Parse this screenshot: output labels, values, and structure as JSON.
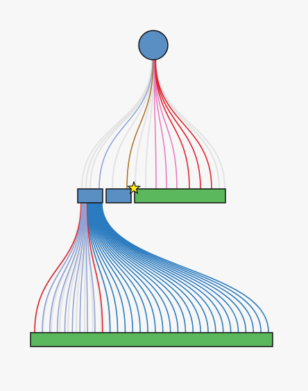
{
  "diagram": {
    "background": "#f7f7f7",
    "colors": {
      "node_blue": "#5a8fc4",
      "node_green": "#5cb85c",
      "outline": "#111111",
      "link_gray": "#e4e4e4",
      "link_red": "#e0212b",
      "link_pink": "#e87bbf",
      "link_periwinkle": "#8fa2d4",
      "link_brown": "#a8782a",
      "link_blue": "#2b7bbf",
      "star_fill": "#ffe81a"
    },
    "nodes": [
      {
        "id": "root",
        "shape": "circle",
        "color": "node_blue"
      },
      {
        "id": "mid-left",
        "shape": "rect",
        "color": "node_blue"
      },
      {
        "id": "mid-center",
        "shape": "rect",
        "color": "node_blue"
      },
      {
        "id": "mid-right",
        "shape": "rect",
        "color": "node_green"
      },
      {
        "id": "bottom",
        "shape": "rect",
        "color": "node_green"
      }
    ],
    "upper_links": [
      "gray",
      "gray",
      "gray",
      "periwinkle",
      "gray",
      "brown",
      "gray",
      "gray",
      "pink",
      "pink",
      "pink",
      "red",
      "red",
      "red",
      "gray",
      "gray"
    ],
    "lower_links": [
      "red",
      "periwinkle",
      "periwinkle",
      "periwinkle",
      "periwinkle",
      "periwinkle",
      "periwinkle",
      "periwinkle",
      "periwinkle",
      "red",
      "blue",
      "blue",
      "blue",
      "blue",
      "blue",
      "blue",
      "blue",
      "blue",
      "blue",
      "blue",
      "blue",
      "blue",
      "blue",
      "blue",
      "blue",
      "blue",
      "blue",
      "blue",
      "blue",
      "blue",
      "blue",
      "blue"
    ],
    "lower_gray_links": 10,
    "marker": {
      "shape": "star",
      "node": "mid-right"
    }
  }
}
